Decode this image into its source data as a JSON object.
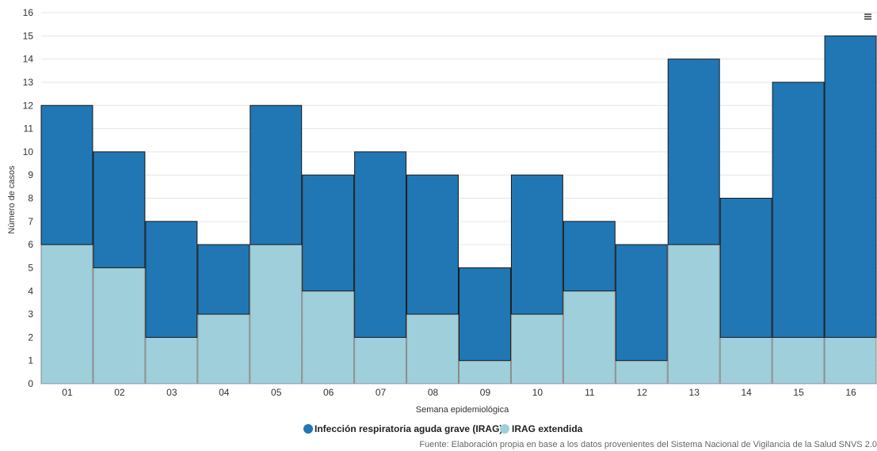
{
  "chart_data": {
    "type": "bar",
    "stacked": true,
    "categories": [
      "01",
      "02",
      "03",
      "04",
      "05",
      "06",
      "07",
      "08",
      "09",
      "10",
      "11",
      "12",
      "13",
      "14",
      "15",
      "16"
    ],
    "series": [
      {
        "name": "Infección respiratoria aguda grave (IRAG)",
        "color": "#2077b4",
        "values": [
          6,
          5,
          5,
          3,
          6,
          5,
          8,
          6,
          4,
          6,
          3,
          5,
          8,
          6,
          11,
          13
        ]
      },
      {
        "name": "IRAG extendida",
        "color": "#9ecfdb",
        "values": [
          6,
          5,
          2,
          3,
          6,
          4,
          2,
          3,
          1,
          3,
          4,
          1,
          6,
          2,
          2,
          2
        ]
      }
    ],
    "stack_order": "IRAG extendida at bottom, Infección respiratoria aguda grave (IRAG) on top",
    "xlabel": "Semana epidemiológica",
    "ylabel": "Número de casos",
    "ylim": [
      0,
      16
    ],
    "yticks": [
      0,
      1,
      2,
      3,
      4,
      5,
      6,
      7,
      8,
      9,
      10,
      11,
      12,
      13,
      14,
      15,
      16
    ],
    "grid": true,
    "legend_position": "bottom-center",
    "source": "Fuente: Elaboración propia en base a los datos provenientes del Sistema Nacional de Vigilancia de la Salud SNVS 2.0"
  },
  "menu_icon": "hamburger-menu-icon"
}
